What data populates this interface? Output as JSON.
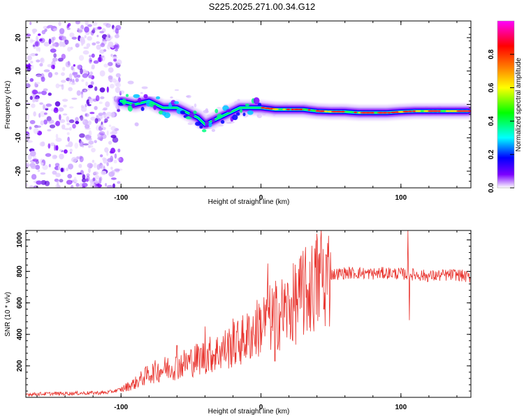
{
  "title": "S225.2025.271.00.34.G12",
  "chart_data": [
    {
      "type": "heatmap",
      "name": "spectrogram",
      "xlabel": "Height of straight line (km)",
      "ylabel": "Frequency (Hz)",
      "xlim": [
        -168,
        150
      ],
      "ylim": [
        -25,
        25
      ],
      "xticks": [
        -100,
        0,
        100
      ],
      "xtick_labels": [
        "-100",
        "0",
        "100"
      ],
      "yticks": [
        -20,
        -10,
        0,
        10,
        20
      ],
      "ytick_labels": [
        "-20",
        "-10",
        "0",
        "10",
        "20"
      ],
      "noise_region_x": [
        -168,
        -100
      ],
      "ridge": {
        "x": [
          -100,
          -90,
          -80,
          -70,
          -60,
          -50,
          -45,
          -40,
          -35,
          -30,
          -25,
          -20,
          -15,
          -10,
          -5,
          0,
          10,
          20,
          30,
          40,
          50,
          60,
          70,
          80,
          90,
          100,
          110,
          120,
          130,
          140,
          148
        ],
        "freq": [
          1,
          0,
          1,
          -1,
          -1,
          -3,
          -4,
          -6,
          -5,
          -4,
          -3,
          -2,
          -1,
          -1,
          -1,
          -1,
          -1.5,
          -1.5,
          -1.5,
          -2,
          -2.2,
          -2.2,
          -2.5,
          -2.5,
          -2.5,
          -2.2,
          -2,
          -2,
          -2,
          -2,
          -2
        ]
      },
      "colorbar": {
        "label": "Normalized spectral amplitude",
        "range": [
          0,
          1
        ],
        "ticks": [
          0.0,
          0.2,
          0.4,
          0.6,
          0.8
        ],
        "tick_labels": [
          "0.0",
          "0.2",
          "0.4",
          "0.6",
          "0.8"
        ],
        "colors": [
          "#ffffff",
          "#7b00ff",
          "#0000ff",
          "#00ffff",
          "#00ff00",
          "#ffff00",
          "#ff8000",
          "#ff0000",
          "#ff00ff"
        ]
      }
    },
    {
      "type": "line",
      "name": "snr",
      "xlabel": "Height of straight line (km)",
      "ylabel": "SNR (10 * v/v)",
      "xlim": [
        -168,
        150
      ],
      "ylim": [
        0,
        1060
      ],
      "xticks": [
        -100,
        0,
        100
      ],
      "xtick_labels": [
        "-100",
        "0",
        "100"
      ],
      "yticks": [
        200,
        400,
        600,
        800,
        1000
      ],
      "ytick_labels": [
        "200",
        "400",
        "600",
        "800",
        "1000"
      ],
      "color": "#e8312b",
      "envelope": {
        "x": [
          -168,
          -110,
          -100,
          -90,
          -80,
          -70,
          -60,
          -50,
          -40,
          -30,
          -20,
          -10,
          0,
          10,
          20,
          30,
          40,
          45,
          50,
          60,
          70,
          80,
          90,
          100,
          110,
          120,
          130,
          140,
          150
        ],
        "y": [
          20,
          30,
          50,
          90,
          150,
          180,
          200,
          230,
          260,
          290,
          330,
          380,
          460,
          520,
          560,
          650,
          720,
          760,
          780,
          790,
          790,
          785,
          790,
          785,
          780,
          770,
          775,
          780,
          760
        ]
      },
      "spikes": [
        {
          "x": -60,
          "y": 330
        },
        {
          "x": -40,
          "y": 450
        },
        {
          "x": -20,
          "y": 500
        },
        {
          "x": 5,
          "y": 850
        },
        {
          "x": 10,
          "y": 230
        },
        {
          "x": 30,
          "y": 930
        },
        {
          "x": 40,
          "y": 1040
        },
        {
          "x": 43,
          "y": 1060
        },
        {
          "x": 45,
          "y": 560
        },
        {
          "x": 105,
          "y": 1060
        },
        {
          "x": 106,
          "y": 490
        }
      ]
    }
  ]
}
